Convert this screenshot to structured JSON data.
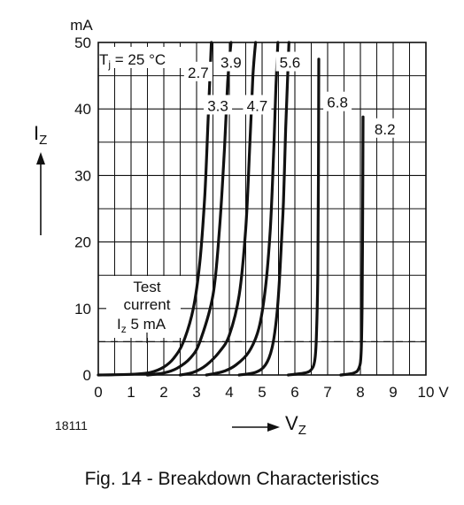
{
  "figure_id": "18111",
  "caption": "Fig. 14 - Breakdown Characteristics",
  "chart_data": {
    "type": "line",
    "title": "",
    "condition": {
      "prefix": "T",
      "sub": "j",
      "suffix": " = 25 °C"
    },
    "xlabel": {
      "main": "V",
      "sub": "Z"
    },
    "ylabel": {
      "main": "I",
      "sub": "Z"
    },
    "y_unit": "mA",
    "x_unit": "V",
    "xlim": [
      0,
      10
    ],
    "ylim": [
      0,
      50
    ],
    "x_ticks": [
      0,
      1,
      2,
      3,
      4,
      5,
      6,
      7,
      8,
      9,
      10
    ],
    "y_ticks": [
      0,
      10,
      20,
      30,
      40,
      50
    ],
    "grid": true,
    "test_current": {
      "value": 5,
      "line1": "Test",
      "line2": "current",
      "prefix": "I",
      "sub": "z",
      "suffix": " 5 mA"
    },
    "series": [
      {
        "name": "2.7",
        "points": [
          [
            0,
            0
          ],
          [
            1,
            0.1
          ],
          [
            1.6,
            0.4
          ],
          [
            2,
            1.2
          ],
          [
            2.3,
            2.5
          ],
          [
            2.6,
            5
          ],
          [
            2.9,
            10
          ],
          [
            3.1,
            17
          ],
          [
            3.25,
            27
          ],
          [
            3.35,
            38
          ],
          [
            3.45,
            50
          ]
        ]
      },
      {
        "name": "3.3",
        "points": [
          [
            1.5,
            0
          ],
          [
            2,
            0.3
          ],
          [
            2.4,
            1
          ],
          [
            2.8,
            2.5
          ],
          [
            3.1,
            5
          ],
          [
            3.5,
            12
          ],
          [
            3.7,
            22
          ],
          [
            3.85,
            34
          ],
          [
            3.95,
            44
          ],
          [
            4.05,
            50
          ]
        ]
      },
      {
        "name": "3.9",
        "points": [
          [
            2.5,
            0
          ],
          [
            2.9,
            0.4
          ],
          [
            3.3,
            1.5
          ],
          [
            3.7,
            3.5
          ],
          [
            4,
            6
          ],
          [
            4.3,
            12
          ],
          [
            4.5,
            22
          ],
          [
            4.62,
            34
          ],
          [
            4.72,
            45
          ],
          [
            4.8,
            50
          ]
        ]
      },
      {
        "name": "4.7",
        "points": [
          [
            3.3,
            0
          ],
          [
            3.8,
            0.5
          ],
          [
            4.2,
            1.5
          ],
          [
            4.6,
            3.5
          ],
          [
            4.9,
            7
          ],
          [
            5.1,
            13
          ],
          [
            5.25,
            22
          ],
          [
            5.35,
            33
          ],
          [
            5.42,
            43
          ],
          [
            5.48,
            50
          ]
        ]
      },
      {
        "name": "5.6",
        "points": [
          [
            4.3,
            0
          ],
          [
            4.8,
            0.4
          ],
          [
            5.1,
            1.5
          ],
          [
            5.3,
            4
          ],
          [
            5.45,
            9
          ],
          [
            5.55,
            16
          ],
          [
            5.65,
            26
          ],
          [
            5.72,
            37
          ],
          [
            5.78,
            45
          ],
          [
            5.82,
            50
          ]
        ]
      },
      {
        "name": "6.8",
        "points": [
          [
            5.8,
            0
          ],
          [
            6.3,
            0.3
          ],
          [
            6.5,
            0.8
          ],
          [
            6.6,
            2
          ],
          [
            6.65,
            5
          ],
          [
            6.7,
            15
          ],
          [
            6.72,
            30
          ],
          [
            6.73,
            47.5
          ]
        ]
      },
      {
        "name": "8.2",
        "points": [
          [
            7.4,
            0
          ],
          [
            7.8,
            0.3
          ],
          [
            7.95,
            1
          ],
          [
            8.02,
            3
          ],
          [
            8.05,
            10
          ],
          [
            8.07,
            25
          ],
          [
            8.08,
            38.8
          ]
        ]
      }
    ],
    "series_labels": [
      {
        "name": "2.7",
        "x": 3.05,
        "y": 45.5
      },
      {
        "name": "3.3",
        "x": 3.65,
        "y": 40.5
      },
      {
        "name": "3.9",
        "x": 4.05,
        "y": 47.0
      },
      {
        "name": "4.7",
        "x": 4.85,
        "y": 40.5
      },
      {
        "name": "5.6",
        "x": 5.85,
        "y": 47.0
      },
      {
        "name": "6.8",
        "x": 7.3,
        "y": 41.0
      },
      {
        "name": "8.2",
        "x": 8.75,
        "y": 37.0
      }
    ]
  }
}
